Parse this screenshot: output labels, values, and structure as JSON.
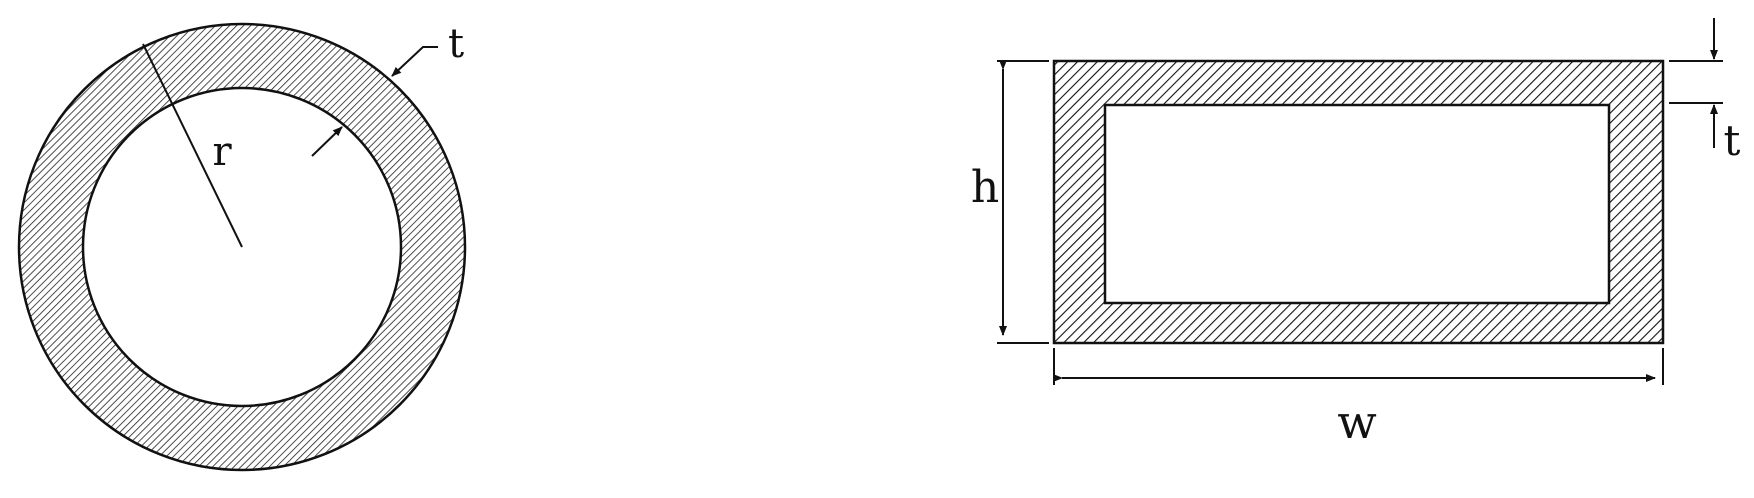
{
  "colors": {
    "stroke": "#111111",
    "hatch": "#222222",
    "hatch_background": "#ffffff",
    "background": "#ffffff"
  },
  "circular_section": {
    "radius_label": "r",
    "thickness_label": "t"
  },
  "rectangular_section": {
    "height_label": "h",
    "width_label": "w",
    "thickness_label": "t"
  }
}
